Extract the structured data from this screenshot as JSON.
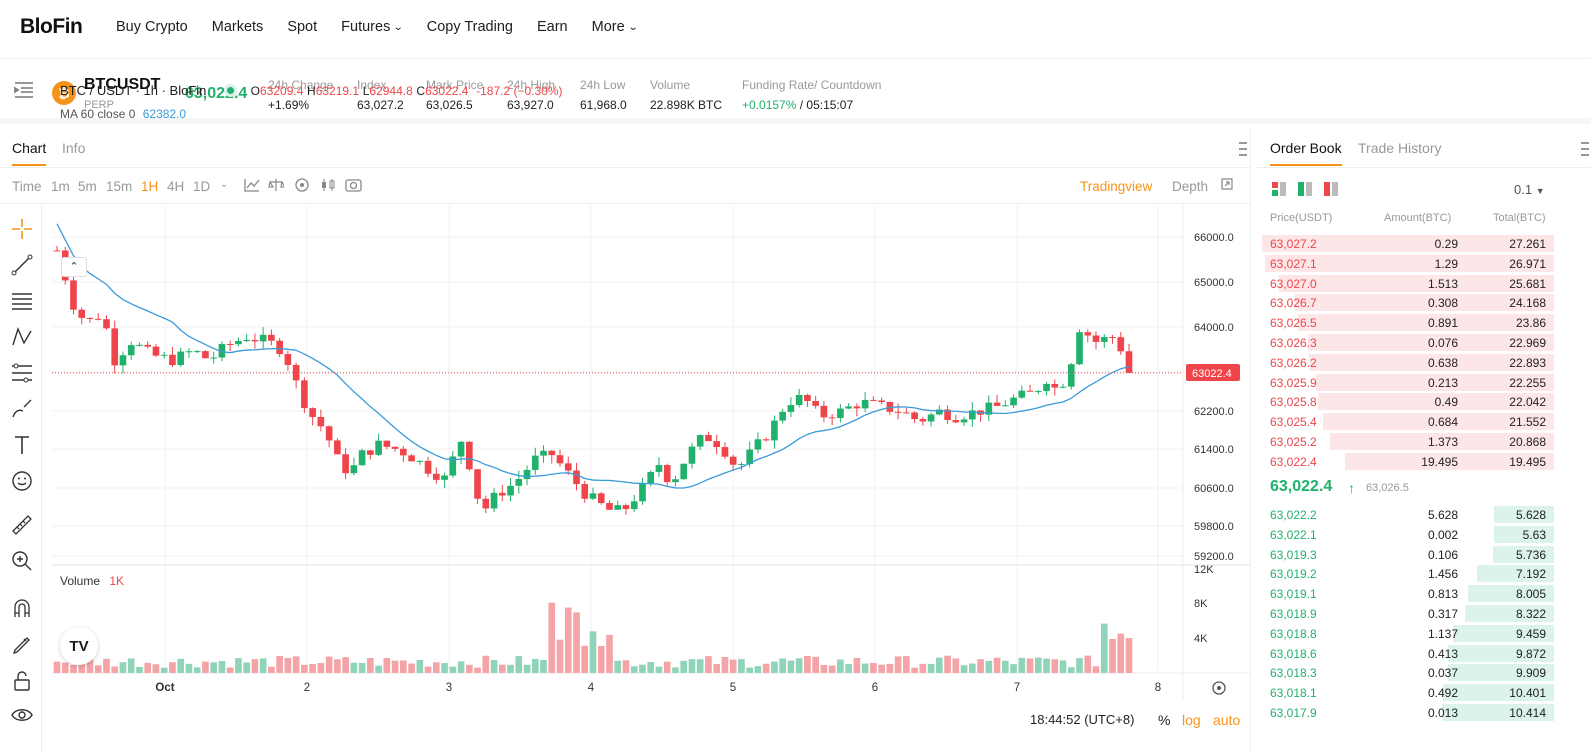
{
  "nav": {
    "logo": "BloFin",
    "items": [
      "Buy Crypto",
      "Markets",
      "Spot",
      "Futures",
      "Copy Trading",
      "Earn",
      "More"
    ]
  },
  "ticker": {
    "symbol": "BTCUSDT",
    "type": "PERP",
    "last": "63,022.4",
    "change_label": "24h Change",
    "change": "+1.69%",
    "index_label": "Index",
    "index": "63,027.2",
    "mark_label": "Mark Price",
    "mark": "63,026.5",
    "high_label": "24h High",
    "high": "63,927.0",
    "low_label": "24h Low",
    "low": "61,968.0",
    "vol_label": "Volume",
    "vol": "22.898K BTC",
    "funding_label": "Funding Rate/ Countdown",
    "funding": "+0.0157%",
    "countdown": "/ 05:15:07"
  },
  "chart_tabs": [
    "Chart",
    "Info"
  ],
  "intervals": [
    "Time",
    "1m",
    "5m",
    "15m",
    "1H",
    "4H",
    "1D"
  ],
  "view_modes": {
    "tradingview": "Tradingview",
    "depth": "Depth"
  },
  "legend": {
    "pair": "BTC / USDT · 1h · BloFin",
    "o_label": "O",
    "o": "63209.4",
    "h_label": "H",
    "h": "63219.1",
    "l_label": "L",
    "l": "62944.8",
    "c_label": "C",
    "c": "63022.4",
    "chg": "-187.2 (−0.30%)"
  },
  "ma": {
    "label": "MA 60 close 0",
    "value": "62382.0"
  },
  "volume": {
    "label": "Volume",
    "value": "1K"
  },
  "price_axis": [
    "66000.0",
    "65000.0",
    "64000.0",
    "63022.4",
    "62200.0",
    "61400.0",
    "60600.0",
    "59800.0",
    "59200.0"
  ],
  "current_price_tag": "63022.4",
  "volume_axis": [
    "12K",
    "8K",
    "4K"
  ],
  "time_axis": [
    "Oct",
    "2",
    "3",
    "4",
    "5",
    "6",
    "7",
    "8"
  ],
  "footer": {
    "time": "18:44:52 (UTC+8)",
    "pct": "%",
    "log": "log",
    "auto": "auto"
  },
  "orderbook": {
    "tabs": [
      "Order Book",
      "Trade History"
    ],
    "precision": "0.1",
    "headers": [
      "Price(USDT)",
      "Amount(BTC)",
      "Total(BTC)"
    ],
    "asks": [
      [
        "63,027.2",
        "0.29",
        "27.261"
      ],
      [
        "63,027.1",
        "1.29",
        "26.971"
      ],
      [
        "63,027.0",
        "1.513",
        "25.681"
      ],
      [
        "63,026.7",
        "0.308",
        "24.168"
      ],
      [
        "63,026.5",
        "0.891",
        "23.86"
      ],
      [
        "63,026.3",
        "0.076",
        "22.969"
      ],
      [
        "63,026.2",
        "0.638",
        "22.893"
      ],
      [
        "63,025.9",
        "0.213",
        "22.255"
      ],
      [
        "63,025.8",
        "0.49",
        "22.042"
      ],
      [
        "63,025.4",
        "0.684",
        "21.552"
      ],
      [
        "63,025.2",
        "1.373",
        "20.868"
      ],
      [
        "63,022.4",
        "19.495",
        "19.495"
      ]
    ],
    "mid_price": "63,022.4",
    "mid_mark": "63,026.5",
    "bids": [
      [
        "63,022.2",
        "5.628",
        "5.628"
      ],
      [
        "63,022.1",
        "0.002",
        "5.63"
      ],
      [
        "63,019.3",
        "0.106",
        "5.736"
      ],
      [
        "63,019.2",
        "1.456",
        "7.192"
      ],
      [
        "63,019.1",
        "0.813",
        "8.005"
      ],
      [
        "63,018.9",
        "0.317",
        "8.322"
      ],
      [
        "63,018.8",
        "1.137",
        "9.459"
      ],
      [
        "63,018.6",
        "0.413",
        "9.872"
      ],
      [
        "63,018.3",
        "0.037",
        "9.909"
      ],
      [
        "63,018.1",
        "0.492",
        "10.401"
      ],
      [
        "63,017.9",
        "0.013",
        "10.414"
      ]
    ]
  },
  "colors": {
    "up": "#20b26c",
    "down": "#ef454a",
    "accent": "#f7931a",
    "ma": "#3a9bd9"
  }
}
